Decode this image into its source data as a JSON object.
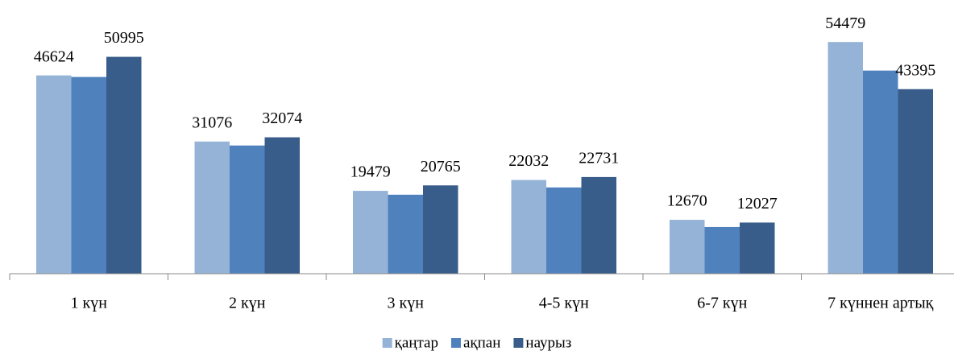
{
  "chart_data": {
    "type": "bar",
    "categories": [
      "1 күн",
      "2 күн",
      "3 күн",
      "4-5 күн",
      "6-7 күн",
      "7 күннен артық"
    ],
    "series": [
      {
        "name": "қаңтар",
        "color": "#95b3d7",
        "show_labels": true,
        "values": [
          46624,
          31076,
          19479,
          22032,
          12670,
          54479
        ]
      },
      {
        "name": "ақпан",
        "color": "#4f81bd",
        "show_labels": false,
        "values": [
          46250,
          30140,
          18570,
          20280,
          10990,
          47760
        ]
      },
      {
        "name": "наурыз",
        "color": "#385d8a",
        "show_labels": true,
        "values": [
          50995,
          32074,
          20765,
          22731,
          12027,
          43395
        ]
      }
    ],
    "ylim": [
      0,
      60000
    ],
    "legend": "bottom"
  }
}
